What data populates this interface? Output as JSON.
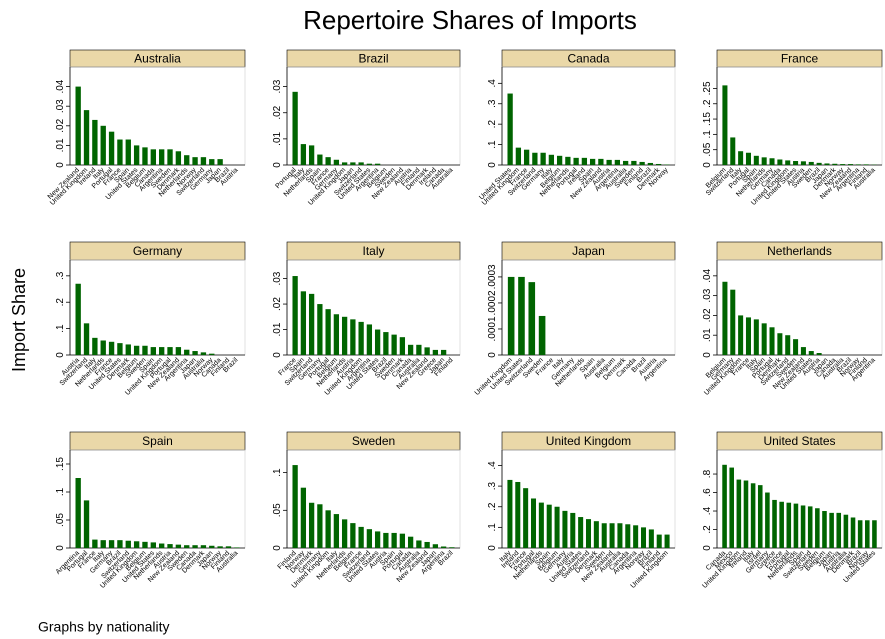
{
  "figure": {
    "title": "Repertoire Shares of Imports",
    "y_axis_label": "Import Share",
    "note": "Graphs by nationality"
  },
  "chart_data": [
    {
      "type": "bar",
      "title": "Australia",
      "color": "#006400",
      "categories": [
        "New Zealand",
        "United Kingdom",
        "Ireland",
        "Italy",
        "Portugal",
        "France",
        "Spain",
        "United States",
        "Belgium",
        "Canada",
        "Argentina",
        "Sweden",
        "Denmark",
        "Netherlands",
        "Norway",
        "Switzerland",
        "Germany",
        "Japan",
        "Brazil",
        "Austria"
      ],
      "values": [
        0.04,
        0.028,
        0.023,
        0.02,
        0.017,
        0.013,
        0.013,
        0.01,
        0.009,
        0.008,
        0.008,
        0.008,
        0.007,
        0.005,
        0.004,
        0.004,
        0.003,
        0.003,
        0,
        0
      ],
      "ylim": [
        0,
        0.05
      ],
      "yticks": [
        0,
        {
          "value": 0.01,
          "label": ".01"
        },
        {
          "value": 0.02,
          "label": ".02"
        },
        {
          "value": 0.03,
          "label": ".03"
        },
        {
          "value": 0.04,
          "label": ".04"
        }
      ]
    },
    {
      "type": "bar",
      "title": "Brazil",
      "color": "#006400",
      "categories": [
        "Portugal",
        "Italy",
        "Netherlands",
        "Spain",
        "France",
        "Germany",
        "United Kingdom",
        "Japan",
        "Switzerland",
        "United States",
        "Argentina",
        "Belgium",
        "Sweden",
        "New Zealand",
        "Austria",
        "Finland",
        "Denmark",
        "Ireland",
        "Canada",
        "Australia"
      ],
      "values": [
        0.028,
        0.008,
        0.0075,
        0.004,
        0.003,
        0.002,
        0.001,
        0.001,
        0.001,
        0.0005,
        0.0005,
        0,
        0,
        0,
        0,
        0,
        0,
        0,
        0,
        0
      ],
      "ylim": [
        0,
        0.0375
      ],
      "yticks": [
        0,
        {
          "value": 0.01,
          "label": ".01"
        },
        {
          "value": 0.02,
          "label": ".02"
        },
        {
          "value": 0.03,
          "label": ".03"
        }
      ]
    },
    {
      "type": "bar",
      "title": "Canada",
      "color": "#006400",
      "categories": [
        "United States",
        "United Kingdom",
        "France",
        "Switzerland",
        "Germany",
        "Italy",
        "Belgium",
        "Netherlands",
        "Portugal",
        "Ireland",
        "Spain",
        "New Zealand",
        "Austria",
        "Argentina",
        "Australia",
        "Sweden",
        "Finland",
        "Brazil",
        "Denmark",
        "Norway"
      ],
      "values": [
        0.35,
        0.085,
        0.075,
        0.06,
        0.06,
        0.05,
        0.045,
        0.04,
        0.035,
        0.035,
        0.03,
        0.03,
        0.025,
        0.025,
        0.02,
        0.02,
        0.015,
        0.01,
        0.005,
        0.002
      ],
      "ylim": [
        0,
        0.48
      ],
      "yticks": [
        0,
        {
          "value": 0.1,
          "label": ".1"
        },
        {
          "value": 0.2,
          "label": ".2"
        },
        {
          "value": 0.3,
          "label": ".3"
        },
        {
          "value": 0.4,
          "label": ".4"
        }
      ]
    },
    {
      "type": "bar",
      "title": "France",
      "color": "#006400",
      "categories": [
        "Belgium",
        "Switzerland",
        "Italy",
        "Portugal",
        "Spain",
        "Netherlands",
        "Germany",
        "Canada",
        "United Kingdom",
        "United States",
        "Austria",
        "Sweden",
        "Brazil",
        "Japan",
        "Denmark",
        "Norway",
        "New Zealand",
        "Argentina",
        "Finland",
        "Australia"
      ],
      "values": [
        0.26,
        0.09,
        0.045,
        0.04,
        0.03,
        0.025,
        0.022,
        0.018,
        0.015,
        0.013,
        0.012,
        0.01,
        0.007,
        0.005,
        0.004,
        0.003,
        0.003,
        0.002,
        0.002,
        0.001
      ],
      "ylim": [
        0,
        0.32
      ],
      "yticks": [
        0,
        {
          "value": 0.05,
          "label": ".05"
        },
        {
          "value": 0.1,
          "label": ".1"
        },
        {
          "value": 0.15,
          "label": ".15"
        },
        {
          "value": 0.2,
          "label": ".2"
        },
        {
          "value": 0.25,
          "label": ".25"
        }
      ]
    },
    {
      "type": "bar",
      "title": "Germany",
      "color": "#006400",
      "categories": [
        "Austria",
        "Switzerland",
        "Italy",
        "Netherlands",
        "France",
        "United States",
        "Denmark",
        "Belgium",
        "Sweden",
        "Spain",
        "United Kingdom",
        "Portugal",
        "New Zealand",
        "Argentina",
        "Japan",
        "Australia",
        "Norway",
        "Canada",
        "Finland",
        "Brazil"
      ],
      "values": [
        0.27,
        0.12,
        0.065,
        0.055,
        0.05,
        0.045,
        0.04,
        0.035,
        0.035,
        0.03,
        0.03,
        0.03,
        0.03,
        0.02,
        0.015,
        0.01,
        0.005,
        0,
        0,
        0
      ],
      "ylim": [
        0,
        0.36
      ],
      "yticks": [
        0,
        {
          "value": 0.1,
          "label": ".1"
        },
        {
          "value": 0.2,
          "label": ".2"
        },
        {
          "value": 0.3,
          "label": ".3"
        }
      ]
    },
    {
      "type": "bar",
      "title": "Italy",
      "color": "#006400",
      "categories": [
        "France",
        "Spain",
        "Switzerland",
        "Germany",
        "Portugal",
        "Belgium",
        "Netherlands",
        "Austria",
        "United Kingdom",
        "Argentina",
        "United States",
        "Brazil",
        "Sweden",
        "Denmark",
        "Canada",
        "Australia",
        "New Zealand",
        "Greece",
        "Japan",
        "Finland"
      ],
      "values": [
        0.031,
        0.025,
        0.024,
        0.02,
        0.018,
        0.016,
        0.015,
        0.014,
        0.013,
        0.012,
        0.01,
        0.009,
        0.008,
        0.007,
        0.004,
        0.004,
        0.003,
        0.002,
        0.002,
        0
      ],
      "ylim": [
        0,
        0.0373
      ],
      "yticks": [
        0,
        {
          "value": 0.01,
          "label": ".01"
        },
        {
          "value": 0.02,
          "label": ".02"
        },
        {
          "value": 0.03,
          "label": ".03"
        }
      ]
    },
    {
      "type": "bar",
      "title": "Japan",
      "color": "#006400",
      "categories": [
        "United Kingdom",
        "United States",
        "Switzerland",
        "Sweden",
        "France",
        "Italy",
        "Germany",
        "Netherlands",
        "Spain",
        "Australia",
        "Belgium",
        "Denmark",
        "Canada",
        "Brazil",
        "Austria",
        "Argentina"
      ],
      "values": [
        0.0003,
        0.0003,
        0.00028,
        0.00015,
        0,
        0,
        0,
        0,
        0,
        0,
        0,
        0,
        0,
        0,
        0,
        0
      ],
      "ylim": [
        0,
        0.000365
      ],
      "yticks": [
        0,
        {
          "value": 0.0001,
          "label": ".0001"
        },
        {
          "value": 0.0002,
          "label": ".0002"
        },
        {
          "value": 0.0003,
          "label": ".0003"
        }
      ]
    },
    {
      "type": "bar",
      "title": "Netherlands",
      "color": "#006400",
      "categories": [
        "Belgium",
        "Germany",
        "United Kingdom",
        "France",
        "Italy",
        "Spain",
        "Portugal",
        "Denmark",
        "Switzerland",
        "Sweden",
        "New Zealand",
        "United States",
        "Austria",
        "Japan",
        "Canada",
        "Australia",
        "Brazil",
        "Norway",
        "Finland",
        "Argentina"
      ],
      "values": [
        0.037,
        0.033,
        0.02,
        0.019,
        0.018,
        0.016,
        0.014,
        0.011,
        0.01,
        0.008,
        0.004,
        0.002,
        0.001,
        0,
        0,
        0,
        0,
        0,
        0,
        0
      ],
      "ylim": [
        0,
        0.048
      ],
      "yticks": [
        0,
        {
          "value": 0.01,
          "label": ".01"
        },
        {
          "value": 0.02,
          "label": ".02"
        },
        {
          "value": 0.03,
          "label": ".03"
        },
        {
          "value": 0.04,
          "label": ".04"
        }
      ]
    },
    {
      "type": "bar",
      "title": "Spain",
      "color": "#006400",
      "categories": [
        "Argentina",
        "Portugal",
        "France",
        "Italy",
        "Germany",
        "Brazil",
        "Switzerland",
        "United Kingdom",
        "Belgium",
        "United States",
        "Netherlands",
        "Austria",
        "New Zealand",
        "Sweden",
        "Canada",
        "Denmark",
        "Japan",
        "Norway",
        "Finland",
        "Australia"
      ],
      "values": [
        0.125,
        0.085,
        0.015,
        0.014,
        0.014,
        0.014,
        0.013,
        0.012,
        0.011,
        0.01,
        0.008,
        0.007,
        0.006,
        0.005,
        0.005,
        0.005,
        0.004,
        0.003,
        0.003,
        0.001
      ],
      "ylim": [
        0,
        0.175
      ],
      "yticks": [
        0,
        {
          "value": 0.05,
          "label": ".05"
        },
        {
          "value": 0.1,
          "label": ".1"
        },
        {
          "value": 0.15,
          "label": ".15"
        }
      ]
    },
    {
      "type": "bar",
      "title": "Sweden",
      "color": "#006400",
      "categories": [
        "Finland",
        "Norway",
        "Denmark",
        "Germany",
        "United Kingdom",
        "Italy",
        "Netherlands",
        "Belgium",
        "France",
        "Switzerland",
        "United States",
        "Austria",
        "Spain",
        "Portugal",
        "Canada",
        "Australia",
        "New Zealand",
        "Japan",
        "Argentina",
        "Brazil"
      ],
      "values": [
        0.11,
        0.08,
        0.06,
        0.058,
        0.05,
        0.045,
        0.038,
        0.033,
        0.028,
        0.025,
        0.022,
        0.02,
        0.02,
        0.019,
        0.015,
        0.01,
        0.008,
        0.005,
        0.002,
        0.001
      ],
      "ylim": [
        0,
        0.13
      ],
      "yticks": [
        0,
        {
          "value": 0.05,
          "label": ".05"
        },
        {
          "value": 0.1,
          "label": ".1"
        }
      ]
    },
    {
      "type": "bar",
      "title": "United Kingdom",
      "color": "#006400",
      "categories": [
        "Italy",
        "Ireland",
        "France",
        "Portugal",
        "Netherlands",
        "Spain",
        "Belgium",
        "Germany",
        "Austria",
        "United States",
        "Switzerland",
        "Denmark",
        "Sweden",
        "New Zealand",
        "Australia",
        "Canada",
        "Argentina",
        "Norway",
        "Brazil",
        "Finland",
        "United Kingdom"
      ],
      "values": [
        0.33,
        0.32,
        0.29,
        0.24,
        0.22,
        0.21,
        0.2,
        0.18,
        0.17,
        0.15,
        0.14,
        0.13,
        0.12,
        0.12,
        0.12,
        0.115,
        0.11,
        0.1,
        0.09,
        0.065,
        0.065
      ],
      "ylim": [
        0,
        0.475
      ],
      "yticks": [
        0,
        {
          "value": 0.1,
          "label": ".1"
        },
        {
          "value": 0.2,
          "label": ".2"
        },
        {
          "value": 0.3,
          "label": ".3"
        },
        {
          "value": 0.4,
          "label": ".4"
        }
      ]
    },
    {
      "type": "bar",
      "title": "United States",
      "color": "#006400",
      "categories": [
        "Canada",
        "Mexico",
        "United Kingdom",
        "Ireland",
        "Italy",
        "Israel",
        "Germany",
        "Greece",
        "France",
        "Portugal",
        "Netherlands",
        "Spain",
        "Switzerland",
        "Sweden",
        "Belgium",
        "Japan",
        "Austria",
        "Australia",
        "Denmark",
        "Brazil",
        "Norway",
        "United States"
      ],
      "values": [
        0.9,
        0.87,
        0.74,
        0.73,
        0.7,
        0.68,
        0.6,
        0.52,
        0.5,
        0.49,
        0.48,
        0.46,
        0.45,
        0.43,
        0.4,
        0.38,
        0.38,
        0.36,
        0.33,
        0.3,
        0.3,
        0.3
      ],
      "ylim": [
        0,
        1.06
      ],
      "yticks": [
        0,
        {
          "value": 0.2,
          "label": ".2"
        },
        {
          "value": 0.4,
          "label": ".4"
        },
        {
          "value": 0.6,
          "label": ".6"
        },
        {
          "value": 0.8,
          "label": ".8"
        }
      ]
    }
  ]
}
